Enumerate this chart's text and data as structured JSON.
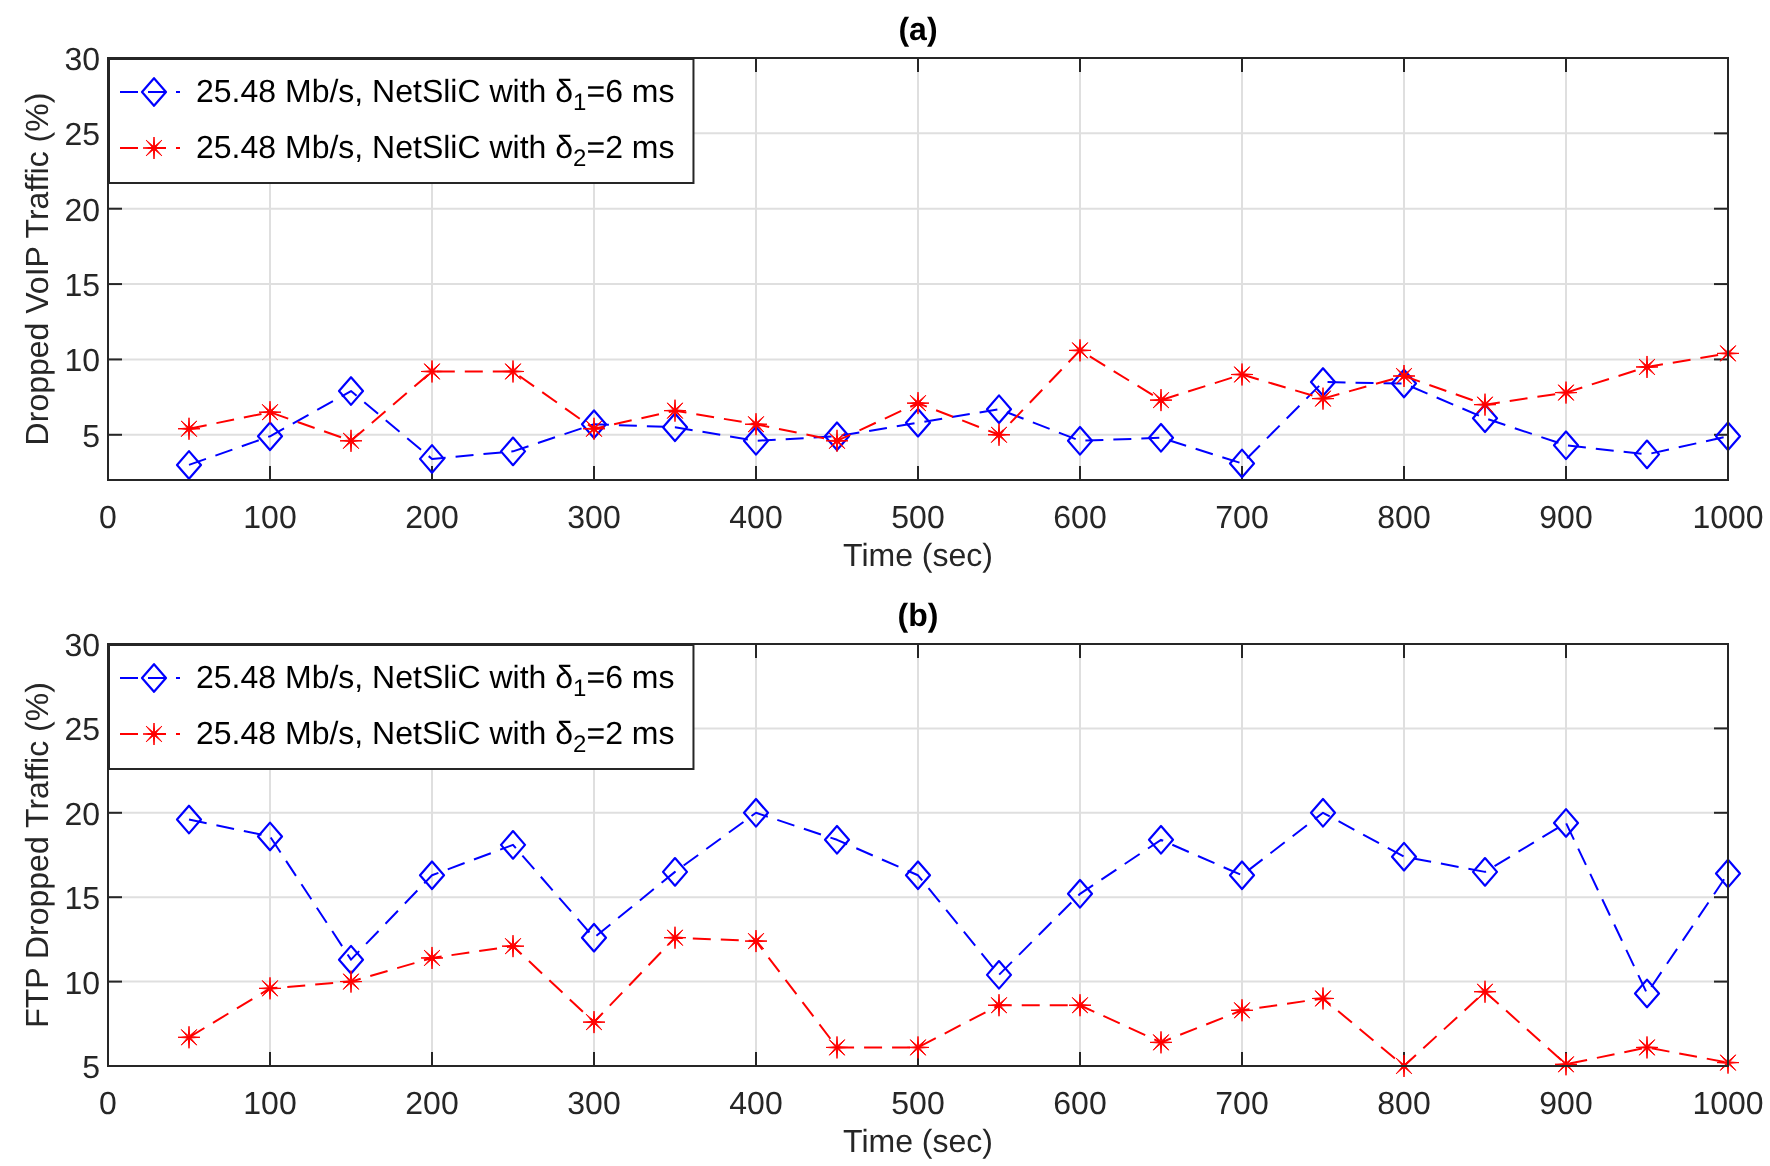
{
  "chart_data": [
    {
      "type": "line",
      "title": "(a)",
      "xlabel": "Time (sec)",
      "ylabel": "Dropped VoIP Traffic (%)",
      "x": [
        50,
        100,
        150,
        200,
        250,
        300,
        350,
        400,
        450,
        500,
        550,
        600,
        650,
        700,
        750,
        800,
        850,
        900,
        950,
        1000
      ],
      "xlim": [
        0,
        1000
      ],
      "xticks": [
        0,
        100,
        200,
        300,
        400,
        500,
        600,
        700,
        800,
        900,
        1000
      ],
      "ylim": [
        2,
        30
      ],
      "yticks": [
        5,
        10,
        15,
        20,
        25,
        30
      ],
      "grid": true,
      "legend": "top left",
      "line_style": "dashed",
      "series": [
        {
          "name": "25.48 Mb/s, NetSliC with δ$_{1}$=6 ms",
          "color": "#0000ff",
          "marker": "diamond",
          "values": [
            3.0,
            4.9,
            7.9,
            3.4,
            3.9,
            5.7,
            5.5,
            4.6,
            4.9,
            5.8,
            6.7,
            4.6,
            4.8,
            3.1,
            8.5,
            8.4,
            6.1,
            4.3,
            3.7,
            4.9
          ]
        },
        {
          "name": "25.48 Mb/s, NetSliC with δ$_{2}$=2 ms",
          "color": "#ff0000",
          "marker": "star",
          "values": [
            5.4,
            6.5,
            4.6,
            9.2,
            9.2,
            5.4,
            6.6,
            5.7,
            4.6,
            7.1,
            5.0,
            10.6,
            7.3,
            9.0,
            7.4,
            8.9,
            7.0,
            7.8,
            9.5,
            10.4
          ]
        }
      ]
    },
    {
      "type": "line",
      "title": "(b)",
      "xlabel": "Time (sec)",
      "ylabel": "FTP Dropped Traffic (%)",
      "x": [
        50,
        100,
        150,
        200,
        250,
        300,
        350,
        400,
        450,
        500,
        550,
        600,
        650,
        700,
        750,
        800,
        850,
        900,
        950,
        1000
      ],
      "xlim": [
        0,
        1000
      ],
      "xticks": [
        0,
        100,
        200,
        300,
        400,
        500,
        600,
        700,
        800,
        900,
        1000
      ],
      "ylim": [
        5,
        30
      ],
      "yticks": [
        5,
        10,
        15,
        20,
        25,
        30
      ],
      "grid": true,
      "legend": "top left",
      "line_style": "dashed",
      "series": [
        {
          "name": "25.48 Mb/s, NetSliC with δ$_{1}$=6 ms",
          "color": "#0000ff",
          "marker": "diamond",
          "values": [
            19.6,
            18.6,
            11.3,
            16.3,
            18.1,
            12.6,
            16.5,
            20.0,
            18.4,
            16.3,
            10.4,
            15.2,
            18.4,
            16.3,
            20.0,
            17.4,
            16.5,
            19.4,
            9.3,
            16.4
          ]
        },
        {
          "name": "25.48 Mb/s, NetSliC with δ$_{2}$=2 ms",
          "color": "#ff0000",
          "marker": "star",
          "values": [
            6.7,
            9.6,
            10.0,
            11.4,
            12.1,
            7.6,
            12.6,
            12.4,
            6.1,
            6.1,
            8.6,
            8.6,
            6.4,
            8.3,
            9.0,
            5.0,
            9.4,
            5.1,
            6.1,
            5.2
          ]
        }
      ]
    }
  ]
}
